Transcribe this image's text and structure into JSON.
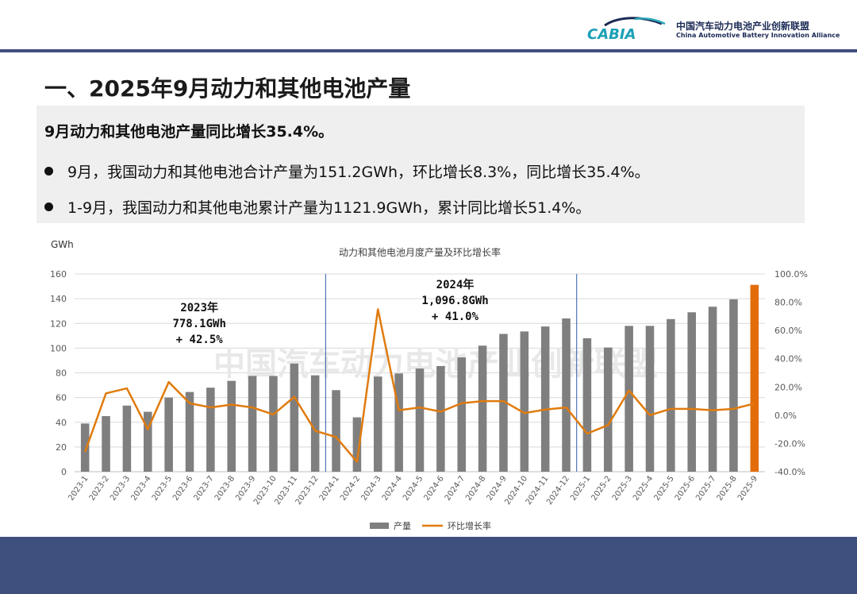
{
  "header": {
    "logo_text": "CABIA",
    "org_name_cn": "中国汽车动力电池产业创新联盟",
    "org_name_en": "China Automotive Battery Innovation Alliance"
  },
  "title": "一、2025年9月动力和其他电池产量",
  "summary": {
    "headline": "9月动力和其他电池产量同比增长35.4%。",
    "bullets": [
      "9月，我国动力和其他电池合计产量为151.2GWh，环比增长8.3%，同比增长35.4%。",
      "1-9月，我国动力和其他电池累计产量为1121.9GWh，累计同比增长51.4%。"
    ]
  },
  "watermark": "中国汽车动力电池产业创新联盟",
  "colors": {
    "bar": "#7f7f7f",
    "bar_highlight": "#e36c0a",
    "line": "#e07b0e",
    "divider": "#2e5aa8",
    "header_band": "#3f4f7e"
  },
  "chart_data": {
    "type": "bar",
    "title": "动力和其他电池月度产量及环比增长率",
    "ylabel": "GWh",
    "ylim": [
      0,
      160
    ],
    "yticks": [
      "0",
      "20",
      "40",
      "60",
      "80",
      "100",
      "120",
      "140",
      "160"
    ],
    "y2lim": [
      -40,
      100
    ],
    "y2ticks": [
      "-40.0%",
      "-20.0%",
      "0.0%",
      "20.0%",
      "40.0%",
      "60.0%",
      "80.0%",
      "100.0%"
    ],
    "grid": true,
    "legend_position": "bottom",
    "categories": [
      "2023-1",
      "2023-2",
      "2023-3",
      "2023-4",
      "2023-5",
      "2023-6",
      "2023-7",
      "2023-8",
      "2023-9",
      "2023-10",
      "2023-11",
      "2023-12",
      "2024-1",
      "2024-2",
      "2024-3",
      "2024-4",
      "2024-5",
      "2024-6",
      "2024-7",
      "2024-8",
      "2024-9",
      "2024-10",
      "2024-11",
      "2024-12",
      "2025-1",
      "2025-2",
      "2025-3",
      "2025-4",
      "2025-5",
      "2025-6",
      "2025-7",
      "2025-8",
      "2025-9"
    ],
    "series": [
      {
        "name": "产量",
        "type": "bar",
        "axis": "left",
        "values": [
          39,
          45,
          53.5,
          48.5,
          60,
          64.5,
          68,
          73.5,
          77.5,
          77.5,
          87.5,
          78,
          66,
          44,
          77,
          79.5,
          83.5,
          85.5,
          92.5,
          102,
          111.5,
          113.5,
          117.5,
          124,
          108,
          100.5,
          118,
          118,
          123.5,
          129,
          133.5,
          139.5,
          151.2
        ]
      },
      {
        "name": "环比增长率",
        "type": "line",
        "axis": "right",
        "values": [
          -26,
          15.5,
          19,
          -10,
          23.5,
          8.5,
          5.5,
          7.5,
          5.5,
          0.5,
          13,
          -11,
          -15.5,
          -33,
          75,
          3.5,
          5.5,
          2.5,
          8.5,
          10,
          10,
          1.5,
          4,
          5.5,
          -13,
          -7,
          17.5,
          0,
          4.5,
          4.5,
          3.5,
          4.5,
          8.3
        ]
      }
    ],
    "annotations": [
      {
        "lines": [
          "2023年",
          "778.1GWh",
          "+ 42.5%"
        ]
      },
      {
        "lines": [
          "2024年",
          "1,096.8GWh",
          "+ 41.0%"
        ]
      }
    ]
  }
}
